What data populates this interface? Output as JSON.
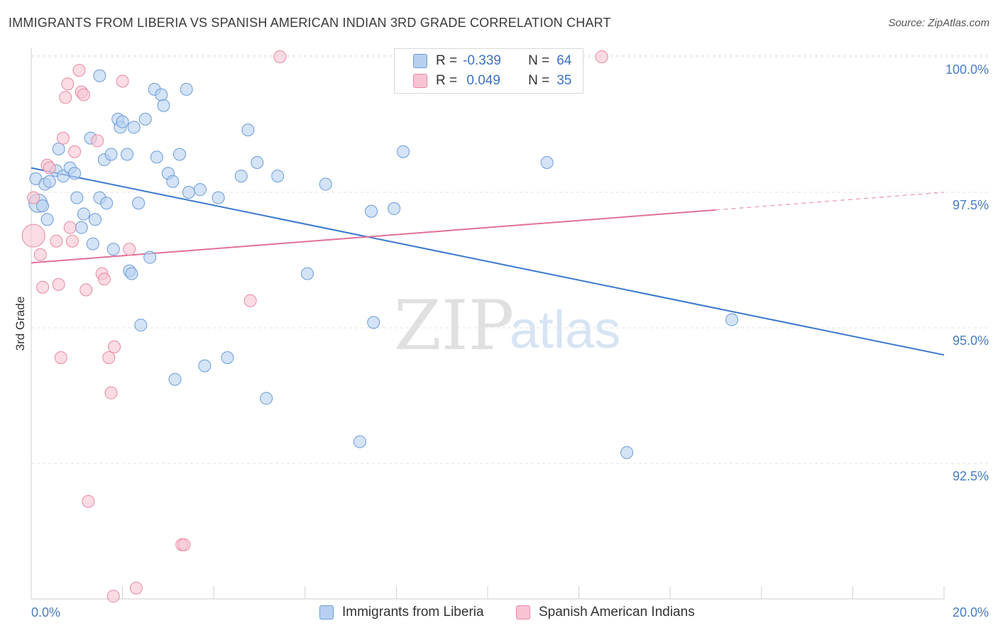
{
  "header": {
    "title": "IMMIGRANTS FROM LIBERIA VS SPANISH AMERICAN INDIAN 3RD GRADE CORRELATION CHART",
    "source": "Source: ZipAtlas.com"
  },
  "watermark": {
    "zip": "ZIP",
    "atlas": "atlas"
  },
  "legend": {
    "rows": [
      {
        "r_label": "R =",
        "r_value": "-0.339",
        "n_label": "N =",
        "n_value": "64"
      },
      {
        "r_label": "R =",
        "r_value": " 0.049",
        "n_label": "N =",
        "n_value": "35"
      }
    ]
  },
  "colors": {
    "blue_fill": "#b8d0f0",
    "blue_stroke": "#6a9bd8",
    "blue_line": "#3a78d0",
    "pink_fill": "#f8c4d4",
    "pink_stroke": "#e8899f",
    "pink_line": "#e0709a",
    "tick_label": "#4a7cc4",
    "grid": "#e2e2e2"
  },
  "chart_data": {
    "type": "scatter",
    "title": "IMMIGRANTS FROM LIBERIA VS SPANISH AMERICAN INDIAN 3RD GRADE CORRELATION CHART",
    "xlabel": "",
    "ylabel": "3rd Grade",
    "xlim": [
      0,
      20
    ],
    "ylim": [
      90.0,
      100.4
    ],
    "x_tick_labels": [
      "0.0%",
      "20.0%"
    ],
    "y_ticks": [
      92.5,
      95.0,
      97.5,
      100.0
    ],
    "y_tick_labels": [
      "92.5%",
      "95.0%",
      "97.5%",
      "100.0%"
    ],
    "grid": true,
    "legend_position": "bottom",
    "series": [
      {
        "name": "Immigrants from Liberia",
        "color": "blue",
        "trend": {
          "x": [
            0,
            20
          ],
          "y": [
            97.95,
            94.5
          ],
          "dashed_from": null
        },
        "points": [
          [
            0.1,
            97.75
          ],
          [
            0.15,
            97.3
          ],
          [
            0.25,
            97.25
          ],
          [
            0.3,
            97.65
          ],
          [
            0.35,
            97.0
          ],
          [
            0.4,
            97.7
          ],
          [
            0.55,
            97.9
          ],
          [
            0.6,
            98.3
          ],
          [
            0.7,
            97.8
          ],
          [
            0.85,
            97.95
          ],
          [
            0.95,
            97.85
          ],
          [
            1.0,
            97.4
          ],
          [
            1.1,
            96.85
          ],
          [
            1.15,
            97.1
          ],
          [
            1.3,
            98.5
          ],
          [
            1.35,
            96.55
          ],
          [
            1.4,
            97.0
          ],
          [
            1.5,
            97.4
          ],
          [
            1.5,
            99.65
          ],
          [
            1.6,
            98.1
          ],
          [
            1.65,
            97.3
          ],
          [
            1.75,
            98.2
          ],
          [
            1.8,
            96.45
          ],
          [
            1.9,
            98.85
          ],
          [
            1.95,
            98.7
          ],
          [
            2.0,
            98.8
          ],
          [
            2.1,
            98.2
          ],
          [
            2.15,
            96.05
          ],
          [
            2.2,
            96.0
          ],
          [
            2.25,
            98.7
          ],
          [
            2.35,
            97.3
          ],
          [
            2.4,
            95.05
          ],
          [
            2.5,
            98.85
          ],
          [
            2.6,
            96.3
          ],
          [
            2.7,
            99.4
          ],
          [
            2.75,
            98.15
          ],
          [
            2.85,
            99.3
          ],
          [
            2.9,
            99.1
          ],
          [
            3.0,
            97.85
          ],
          [
            3.1,
            97.7
          ],
          [
            3.15,
            94.05
          ],
          [
            3.25,
            98.2
          ],
          [
            3.4,
            99.4
          ],
          [
            3.45,
            97.5
          ],
          [
            3.7,
            97.55
          ],
          [
            3.8,
            94.3
          ],
          [
            4.1,
            97.4
          ],
          [
            4.3,
            94.45
          ],
          [
            4.6,
            97.8
          ],
          [
            4.75,
            98.65
          ],
          [
            4.95,
            98.05
          ],
          [
            5.15,
            93.7
          ],
          [
            5.4,
            97.8
          ],
          [
            6.05,
            96.0
          ],
          [
            6.45,
            97.65
          ],
          [
            7.2,
            92.9
          ],
          [
            7.45,
            97.15
          ],
          [
            7.5,
            95.1
          ],
          [
            7.95,
            97.2
          ],
          [
            8.15,
            98.25
          ],
          [
            9.4,
            100.0
          ],
          [
            11.3,
            98.05
          ],
          [
            13.05,
            92.7
          ],
          [
            15.35,
            95.15
          ]
        ]
      },
      {
        "name": "Spanish American Indians",
        "color": "pink",
        "trend": {
          "x": [
            0,
            20
          ],
          "y": [
            96.2,
            97.5
          ],
          "dashed_from": 15.0
        },
        "points": [
          [
            0.05,
            97.4
          ],
          [
            0.05,
            96.7
          ],
          [
            0.2,
            96.35
          ],
          [
            0.25,
            95.75
          ],
          [
            0.35,
            98.0
          ],
          [
            0.4,
            97.95
          ],
          [
            0.55,
            96.6
          ],
          [
            0.6,
            95.8
          ],
          [
            0.65,
            94.45
          ],
          [
            0.7,
            98.5
          ],
          [
            0.75,
            99.25
          ],
          [
            0.8,
            99.5
          ],
          [
            0.85,
            96.85
          ],
          [
            0.9,
            96.6
          ],
          [
            0.95,
            98.25
          ],
          [
            1.05,
            99.75
          ],
          [
            1.1,
            99.35
          ],
          [
            1.15,
            99.3
          ],
          [
            1.2,
            95.7
          ],
          [
            1.25,
            91.8
          ],
          [
            1.45,
            98.45
          ],
          [
            1.55,
            96.0
          ],
          [
            1.6,
            95.9
          ],
          [
            1.7,
            94.45
          ],
          [
            1.75,
            93.8
          ],
          [
            1.8,
            90.05
          ],
          [
            1.82,
            94.65
          ],
          [
            2.0,
            99.55
          ],
          [
            2.15,
            96.45
          ],
          [
            2.3,
            90.2
          ],
          [
            3.3,
            91.0
          ],
          [
            3.35,
            91.0
          ],
          [
            4.8,
            95.5
          ],
          [
            5.45,
            100.0
          ],
          [
            12.5,
            100.0
          ]
        ]
      }
    ]
  },
  "bottom_legend": {
    "items": [
      {
        "label": "Immigrants from Liberia"
      },
      {
        "label": "Spanish American Indians"
      }
    ]
  }
}
